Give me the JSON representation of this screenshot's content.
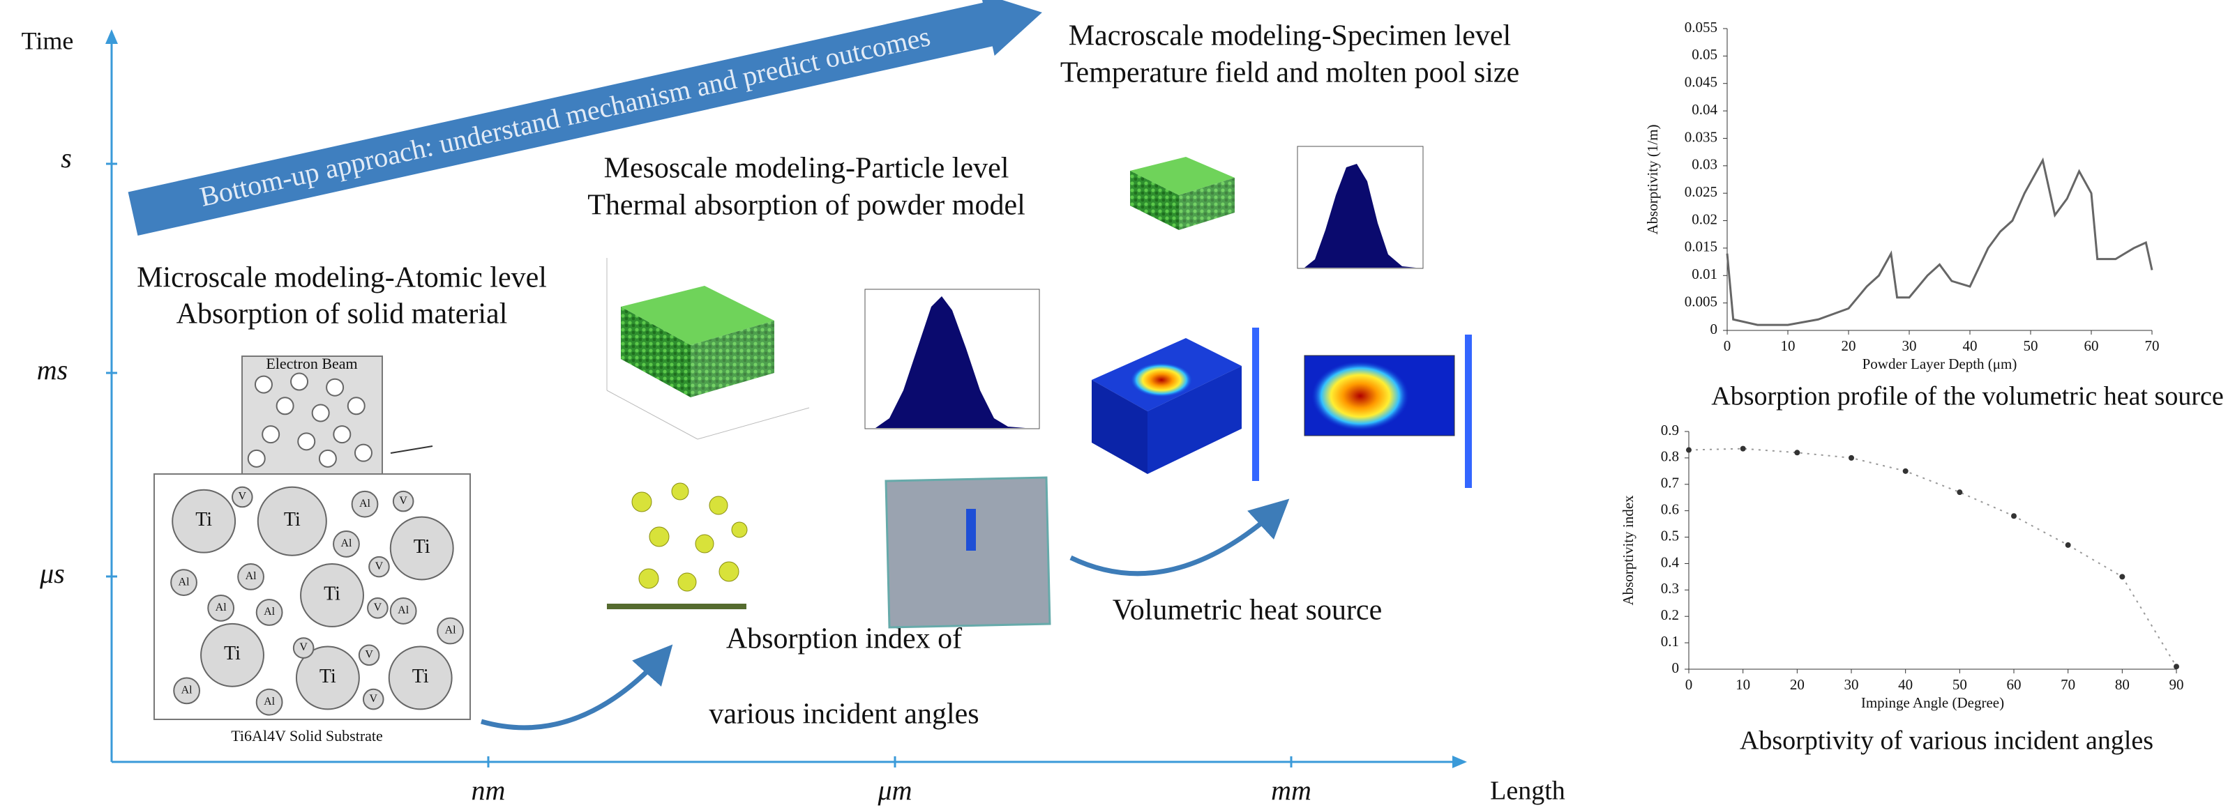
{
  "axes": {
    "y_label": "Time",
    "y_ticks": [
      "s",
      "ms",
      "μs"
    ],
    "x_label": "Length",
    "x_ticks": [
      "nm",
      "μm",
      "mm"
    ]
  },
  "banner": "Bottom-up approach: understand mechanism and predict outcomes",
  "macroscale": {
    "title": "Macroscale modeling-Specimen level",
    "subtitle": "Temperature field and molten pool size",
    "caption": "Volumetric heat source"
  },
  "mesoscale": {
    "title": "Mesoscale modeling-Particle level",
    "subtitle": "Thermal absorption of powder model",
    "caption_lines": [
      "Absorption index of",
      "various incident angles"
    ]
  },
  "microscale": {
    "title": "Microscale modeling-Atomic level",
    "subtitle": "Absorption of solid material",
    "beam_label": "Electron Beam",
    "substrate_label": "Ti6Al4V Solid Substrate",
    "atoms": [
      "Ti",
      "Ti",
      "Ti",
      "Ti",
      "Ti",
      "Ti",
      "Ti",
      "Al",
      "Al",
      "Al",
      "Al",
      "Al",
      "Al",
      "Al",
      "Al",
      "Al",
      "Al",
      "V",
      "V",
      "V",
      "V",
      "V",
      "V",
      "V"
    ]
  },
  "charts": [
    {
      "type": "line",
      "caption": "Absorption profile of the volumetric heat source",
      "x_label": "Powder Layer Depth (μm)",
      "y_label": "Absorptivity (1/m)",
      "color": "#666666",
      "x": [
        0,
        1,
        5,
        10,
        15,
        20,
        23,
        25,
        27,
        28,
        30,
        33,
        35,
        37,
        40,
        43,
        45,
        47,
        49,
        52,
        54,
        56,
        58,
        60,
        61,
        64,
        67,
        69,
        70
      ],
      "values": [
        0.014,
        0.002,
        0.001,
        0.001,
        0.002,
        0.004,
        0.008,
        0.01,
        0.014,
        0.006,
        0.006,
        0.01,
        0.012,
        0.009,
        0.008,
        0.015,
        0.018,
        0.02,
        0.025,
        0.031,
        0.021,
        0.024,
        0.029,
        0.025,
        0.013,
        0.013,
        0.015,
        0.016,
        0.011
      ],
      "xlim": [
        0,
        70
      ],
      "ylim": [
        0,
        0.055
      ],
      "xticks": [
        0,
        10,
        20,
        30,
        40,
        50,
        60,
        70
      ],
      "yticks": [
        0,
        0.005,
        0.01,
        0.015,
        0.02,
        0.025,
        0.03,
        0.035,
        0.04,
        0.045,
        0.05,
        0.055
      ]
    },
    {
      "type": "scatter",
      "caption": "Absorptivity of various incident angles",
      "x_label": "Impinge Angle (Degree)",
      "y_label": "Absorptivity index",
      "color": "#333333",
      "x": [
        0,
        10,
        20,
        30,
        40,
        50,
        60,
        70,
        80,
        90
      ],
      "values": [
        0.83,
        0.835,
        0.82,
        0.8,
        0.75,
        0.67,
        0.58,
        0.47,
        0.35,
        0.01
      ],
      "xlim": [
        0,
        90
      ],
      "ylim": [
        0,
        0.9
      ],
      "xticks": [
        0,
        10,
        20,
        30,
        40,
        50,
        60,
        70,
        80,
        90
      ],
      "yticks": [
        0,
        0.1,
        0.2,
        0.3,
        0.4,
        0.5,
        0.6,
        0.7,
        0.8,
        0.9
      ]
    }
  ]
}
